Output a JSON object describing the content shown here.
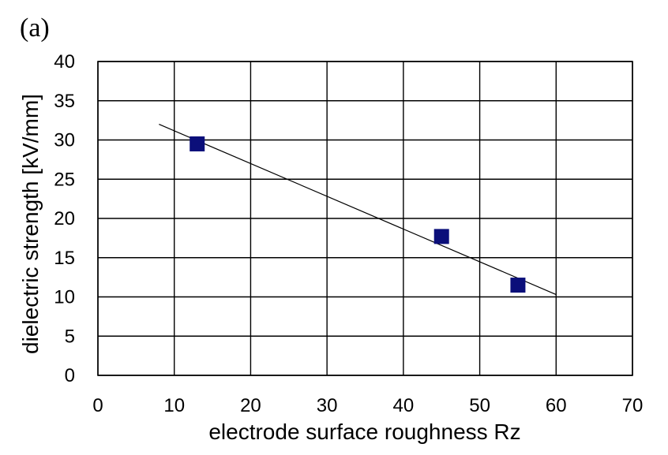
{
  "panel_label": "(a)",
  "chart_data": {
    "type": "scatter",
    "title": "",
    "xlabel": "electrode surface roughness Rz",
    "ylabel": "dielectric strength [kV/mm]",
    "xlim": [
      0,
      70
    ],
    "ylim": [
      0,
      40
    ],
    "x_ticks": [
      0,
      10,
      20,
      30,
      40,
      50,
      60,
      70
    ],
    "y_ticks": [
      0,
      5,
      10,
      15,
      20,
      25,
      30,
      35,
      40
    ],
    "x_tick_labels": [
      "0",
      "10",
      "20",
      "30",
      "40",
      "50",
      "60",
      "70"
    ],
    "y_tick_labels": [
      "0",
      "5",
      "10",
      "15",
      "20",
      "25",
      "30",
      "35",
      "40"
    ],
    "grid": true,
    "legend": "none",
    "series": [
      {
        "marker": "square",
        "color": "#0b0f7a",
        "points": [
          {
            "x": 13,
            "y": 29.5
          },
          {
            "x": 45,
            "y": 17.7
          },
          {
            "x": 55,
            "y": 11.5
          }
        ]
      }
    ],
    "trendline": {
      "type": "linear",
      "color": "#000000",
      "x_start": 8,
      "y_start": 32,
      "x_end": 60,
      "y_end": 10.3
    }
  }
}
